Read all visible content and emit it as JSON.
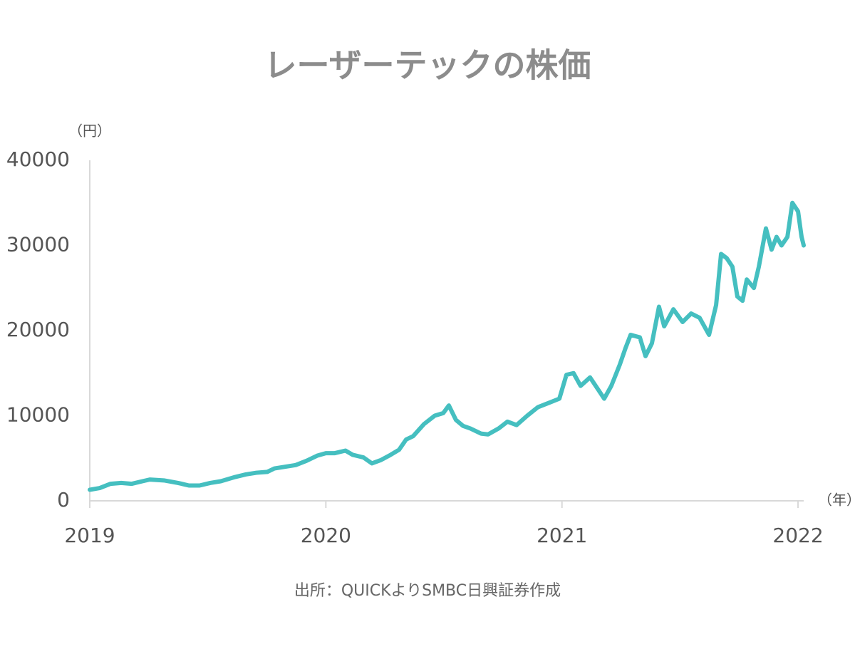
{
  "chart_data": {
    "type": "line",
    "title": "レーザーテックの株価",
    "y_unit": "（円）",
    "x_unit": "（年）",
    "source": "出所：QUICKよりSMBC日興証券作成",
    "x": [
      2019.0,
      2019.042,
      2019.088,
      2019.133,
      2019.178,
      2019.223,
      2019.254,
      2019.314,
      2019.374,
      2019.42,
      2019.465,
      2019.51,
      2019.555,
      2019.616,
      2019.661,
      2019.706,
      2019.752,
      2019.782,
      2019.827,
      2019.872,
      2019.918,
      2019.963,
      2020.0,
      2020.038,
      2020.083,
      2020.114,
      2020.159,
      2020.195,
      2020.234,
      2020.274,
      2020.31,
      2020.34,
      2020.37,
      2020.415,
      2020.461,
      2020.497,
      2020.521,
      2020.551,
      2020.581,
      2020.612,
      2020.657,
      2020.687,
      2020.732,
      2020.769,
      2020.808,
      2020.853,
      2020.898,
      2020.944,
      2020.989,
      2021.019,
      2021.049,
      2021.079,
      2021.119,
      2021.155,
      2021.179,
      2021.209,
      2021.245,
      2021.27,
      2021.291,
      2021.33,
      2021.354,
      2021.381,
      2021.411,
      2021.433,
      2021.472,
      2021.511,
      2021.547,
      2021.583,
      2021.623,
      2021.653,
      2021.674,
      2021.698,
      2021.722,
      2021.743,
      2021.765,
      2021.783,
      2021.813,
      2021.834,
      2021.864,
      2021.888,
      2021.909,
      2021.93,
      2021.955,
      2021.976,
      2022.0,
      2022.015,
      2022.024
    ],
    "series": [
      {
        "name": "レーザーテック",
        "color": "#45bfc0",
        "values": [
          1300,
          1500,
          2000,
          2100,
          2000,
          2300,
          2500,
          2400,
          2100,
          1800,
          1800,
          2100,
          2300,
          2800,
          3100,
          3300,
          3400,
          3800,
          4000,
          4200,
          4700,
          5300,
          5600,
          5600,
          5900,
          5400,
          5100,
          4400,
          4800,
          5400,
          6000,
          7200,
          7600,
          9000,
          10000,
          10300,
          11200,
          9500,
          8800,
          8500,
          7900,
          7800,
          8500,
          9300,
          8900,
          10000,
          11000,
          11500,
          12000,
          14800,
          15000,
          13500,
          14500,
          13000,
          12000,
          13500,
          16000,
          18000,
          19500,
          19200,
          17000,
          18500,
          22800,
          20500,
          22500,
          21000,
          22000,
          21500,
          19500,
          23000,
          29000,
          28500,
          27500,
          24000,
          23500,
          26000,
          25000,
          27500,
          32000,
          29500,
          31000,
          30000,
          31000,
          35000,
          34000,
          31000,
          30000
        ]
      }
    ],
    "xlim": [
      2019,
      2022.024
    ],
    "xticks": [
      2019,
      2020,
      2021,
      2022
    ],
    "ylim": [
      0,
      40000
    ],
    "yticks": [
      0,
      10000,
      20000,
      30000,
      40000
    ],
    "grid": false
  }
}
